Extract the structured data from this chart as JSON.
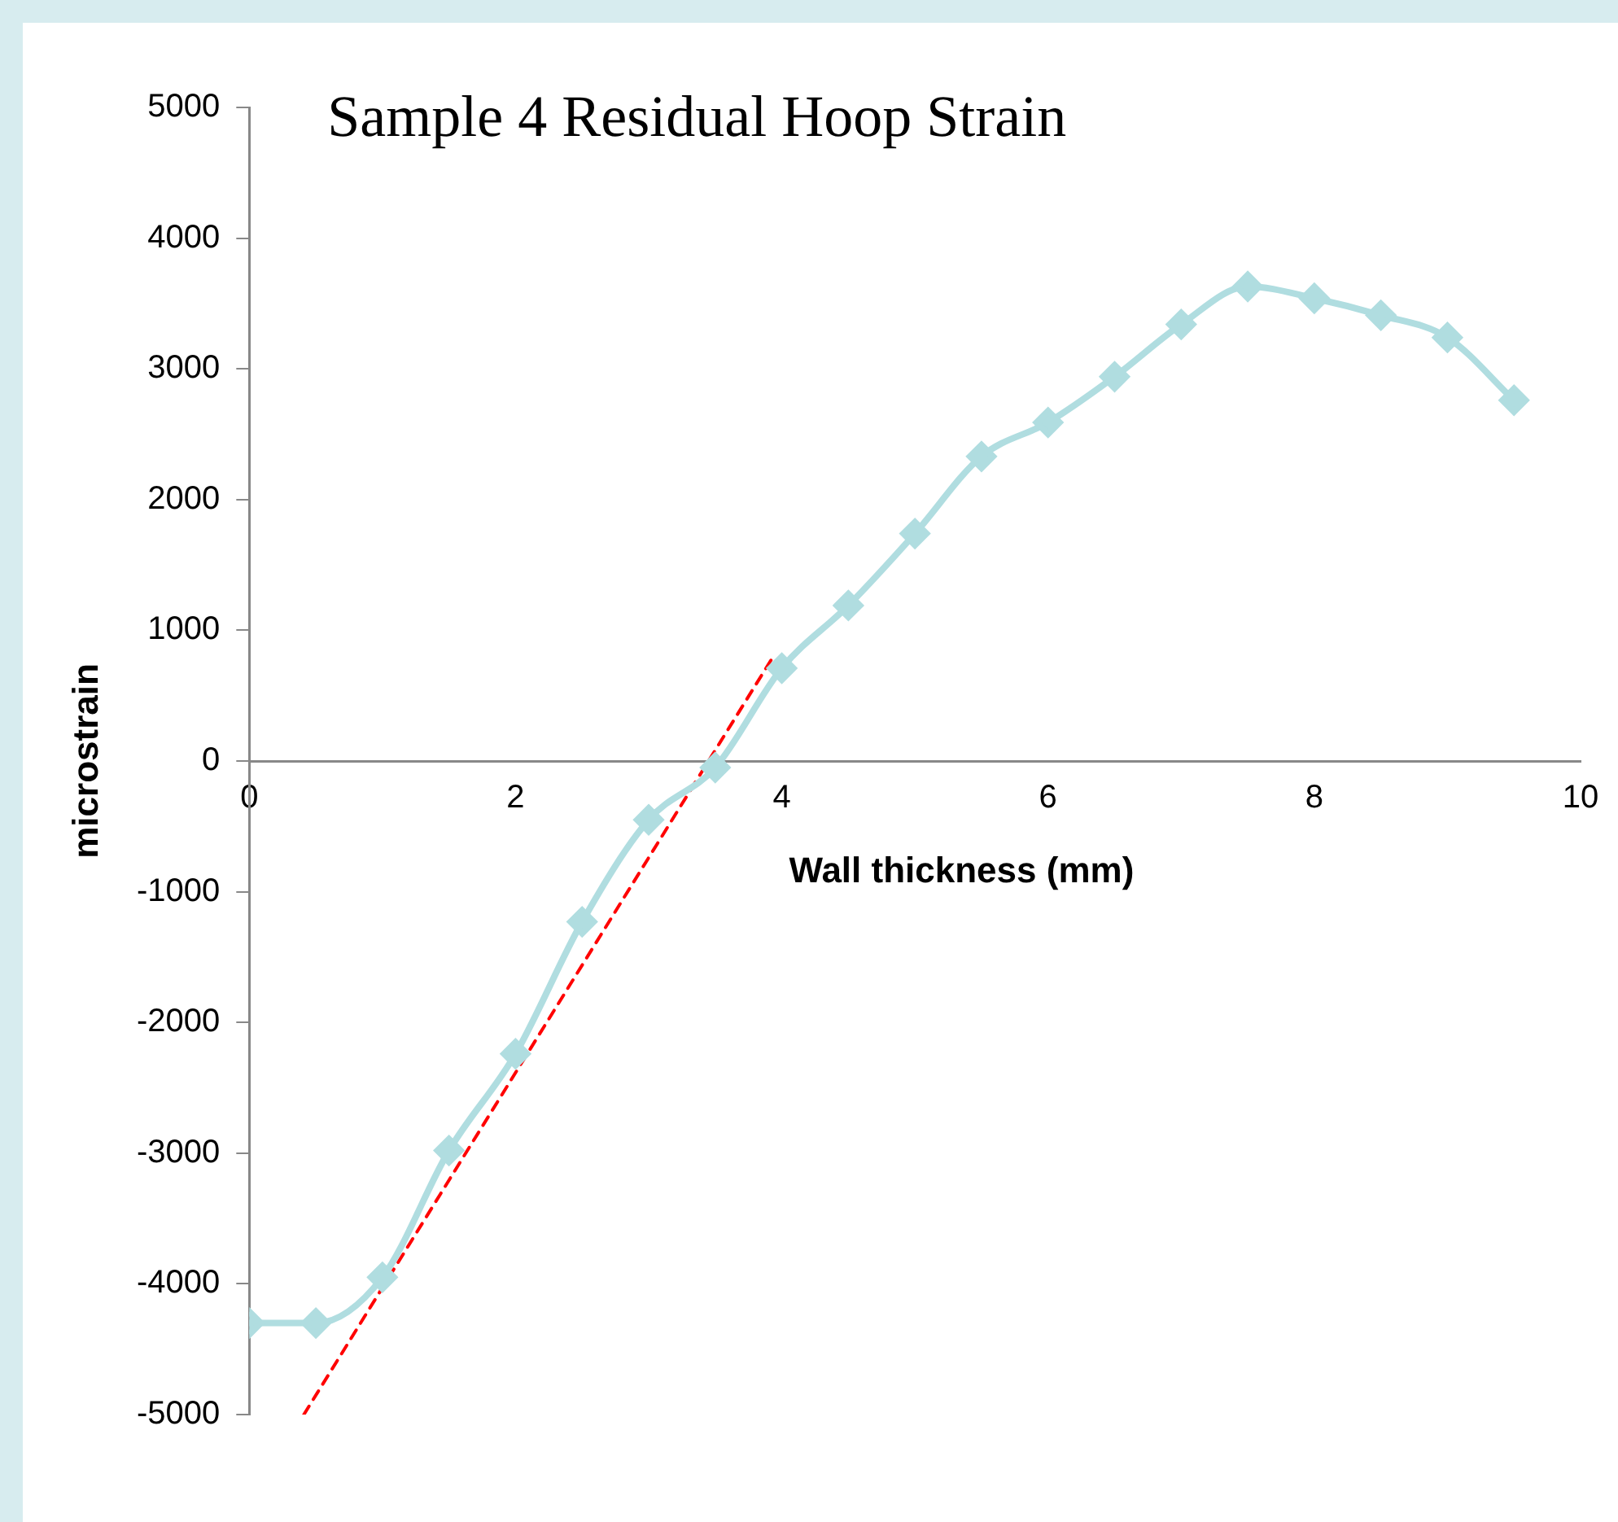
{
  "chart_data": {
    "type": "line",
    "title": "Sample 4 Residual Hoop Strain",
    "xlabel": "Wall thickness (mm)",
    "ylabel": "microstrain",
    "xlim": [
      0,
      10
    ],
    "xticks": [
      0,
      2,
      4,
      6,
      8,
      10
    ],
    "ylim": [
      -5000,
      5000
    ],
    "yticks": [
      -5000,
      -4000,
      -3000,
      -2000,
      -1000,
      0,
      1000,
      2000,
      3000,
      4000,
      5000
    ],
    "grid": false,
    "series": [
      {
        "color": "#b0dde0",
        "marker": "diamond",
        "line_style": "solid",
        "x": [
          0,
          0.5,
          1,
          1.5,
          2,
          2.5,
          3,
          3.5,
          4,
          4.5,
          5,
          5.5,
          6,
          6.5,
          7,
          7.5,
          8,
          8.5,
          9,
          9.5
        ],
        "values": [
          -4300,
          -4300,
          -3950,
          -2980,
          -2240,
          -1230,
          -450,
          -50,
          710,
          1190,
          1740,
          2330,
          2590,
          2940,
          3340,
          3630,
          3540,
          3410,
          3240,
          2760
        ]
      },
      {
        "type": "line",
        "color": "#ff0000",
        "line_style": "dashed",
        "marker": "none",
        "x": [
          0.41,
          3.93
        ],
        "values": [
          -5000,
          790
        ]
      }
    ]
  }
}
